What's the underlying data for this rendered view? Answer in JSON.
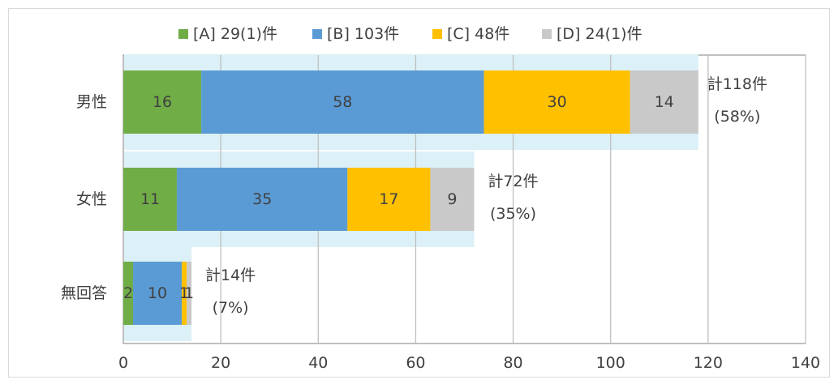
{
  "chart_data": {
    "type": "bar",
    "orientation": "horizontal",
    "stacked": true,
    "categories": [
      "男性",
      "女性",
      "無回答"
    ],
    "series": [
      {
        "name": "[A] 29(1)件",
        "values": [
          16,
          11,
          2
        ],
        "color": "#70ad47"
      },
      {
        "name": "[B] 103件",
        "values": [
          58,
          35,
          10
        ],
        "color": "#5b9bd5"
      },
      {
        "name": "[C] 48件",
        "values": [
          30,
          17,
          1
        ],
        "color": "#ffc000"
      },
      {
        "name": "[D] 24(1)件",
        "values": [
          14,
          9,
          1
        ],
        "color": "#c9c9c9"
      }
    ],
    "data_labels": [
      [
        "16",
        "58",
        "30",
        "14"
      ],
      [
        "11",
        "35",
        "17",
        "9"
      ],
      [
        "2",
        "10",
        "1",
        "1"
      ]
    ],
    "totals": [
      118,
      72,
      14
    ],
    "total_labels": [
      [
        "計118件",
        "(58%)"
      ],
      [
        "計72件",
        "(35%)"
      ],
      [
        "計14件",
        "(7%)"
      ]
    ],
    "xlim": [
      0,
      140
    ],
    "x_ticks": [
      "0",
      "20",
      "40",
      "60",
      "80",
      "100",
      "120",
      "140"
    ],
    "x_tick_values": [
      0,
      20,
      40,
      60,
      80,
      100,
      120,
      140
    ],
    "grid": "vertical",
    "legend": "top",
    "title": "",
    "xlabel": "",
    "ylabel": "",
    "background_band_color": "#dcf0f7",
    "gridline_color": "#bfbfbf"
  }
}
